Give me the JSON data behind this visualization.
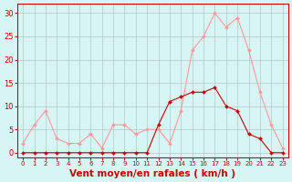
{
  "hours": [
    0,
    1,
    2,
    3,
    4,
    5,
    6,
    7,
    8,
    9,
    10,
    11,
    12,
    13,
    14,
    15,
    16,
    17,
    18,
    19,
    20,
    21,
    22,
    23
  ],
  "wind_mean": [
    0,
    0,
    0,
    0,
    0,
    0,
    0,
    0,
    0,
    0,
    0,
    0,
    6,
    11,
    12,
    13,
    13,
    14,
    10,
    9,
    4,
    3,
    0,
    0
  ],
  "wind_gusts": [
    2,
    6,
    9,
    3,
    2,
    2,
    4,
    1,
    6,
    6,
    4,
    5,
    5,
    2,
    9,
    22,
    25,
    30,
    27,
    29,
    22,
    13,
    6,
    1
  ],
  "line_mean_color": "#cc0000",
  "line_gusts_color": "#ff9999",
  "bg_color": "#d8f5f5",
  "grid_color": "#b0c8c8",
  "axis_color": "#cc0000",
  "xlabel": "Vent moyen/en rafales ( km/h )",
  "xlabel_fontsize": 7.5,
  "yticks": [
    0,
    5,
    10,
    15,
    20,
    25,
    30
  ],
  "ylim": [
    -1,
    32
  ],
  "xlim": [
    -0.5,
    23.5
  ]
}
